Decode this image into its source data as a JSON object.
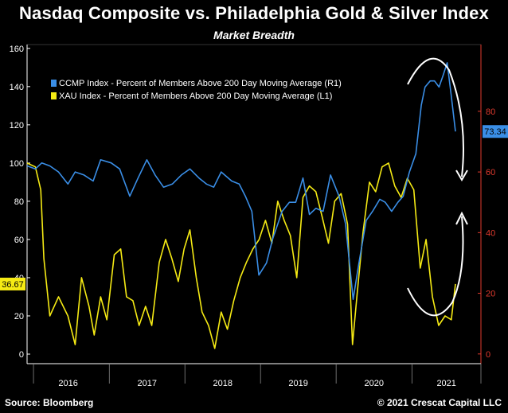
{
  "header": {
    "title": "Nasdaq Composite vs. Philadelphia Gold & Silver Index",
    "subtitle": "Market Breadth"
  },
  "footer": {
    "source": "Source: Bloomberg",
    "copyright": "© 2021 Crescat Capital LLC"
  },
  "colors": {
    "background": "#000000",
    "ccmp": "#3a8ee6",
    "xau": "#f5ea14",
    "left_axis": "#ffffff",
    "right_axis": "#e03a2e",
    "annotation": "#ffffff"
  },
  "chart_data": {
    "type": "line",
    "x_axis": {
      "type": "date",
      "range": [
        "2015-12-01",
        "2021-11-30"
      ]
    },
    "x_tick_labels": [
      "2016",
      "2017",
      "2018",
      "2019",
      "2020",
      "2021"
    ],
    "left_axis": {
      "ylim": [
        -5,
        162
      ],
      "ticks": [
        0,
        20,
        40,
        60,
        80,
        100,
        120,
        140,
        160
      ]
    },
    "right_axis": {
      "ylim": [
        -3.2,
        102
      ],
      "ticks": [
        0,
        20,
        40,
        60,
        80
      ]
    },
    "grid": false,
    "legend": {
      "placement": "top-left",
      "entries": [
        "CCMP Index - Percent of Members Above 200 Day Moving Average (R1)",
        "XAU Index - Percent of Members Above 200 Day Moving Average (L1)"
      ]
    },
    "last_value_labels": {
      "xau": "36.67",
      "ccmp": "73.34"
    },
    "annotations": [
      "curved arrow down over CCMP peak",
      "curved arrow up under XAU trough"
    ],
    "series": [
      {
        "name": "CCMP Index - Percent of Members Above 200 Day Moving Average (R1)",
        "axis": "right",
        "color": "#3a8ee6",
        "x": [
          "2015-12-01",
          "2016-01-10",
          "2016-02-10",
          "2016-03-20",
          "2016-05-01",
          "2016-06-15",
          "2016-07-20",
          "2016-09-01",
          "2016-10-15",
          "2016-11-20",
          "2017-01-10",
          "2017-02-20",
          "2017-04-10",
          "2017-05-20",
          "2017-07-01",
          "2017-08-10",
          "2017-09-20",
          "2017-11-01",
          "2017-12-15",
          "2018-01-25",
          "2018-03-10",
          "2018-04-15",
          "2018-05-20",
          "2018-06-25",
          "2018-08-15",
          "2018-09-20",
          "2018-10-20",
          "2018-11-20",
          "2018-12-24",
          "2019-01-30",
          "2019-03-01",
          "2019-04-15",
          "2019-05-20",
          "2019-06-20",
          "2019-07-25",
          "2019-08-25",
          "2019-09-25",
          "2019-10-30",
          "2019-12-05",
          "2020-01-15",
          "2020-02-15",
          "2020-03-23",
          "2020-04-20",
          "2020-05-25",
          "2020-06-25",
          "2020-07-30",
          "2020-08-25",
          "2020-09-25",
          "2020-10-25",
          "2020-11-20",
          "2020-12-20",
          "2021-01-20",
          "2021-02-15",
          "2021-03-05",
          "2021-03-30",
          "2021-04-20",
          "2021-05-12",
          "2021-06-01",
          "2021-06-20",
          "2021-07-10",
          "2021-07-30"
        ],
        "values": [
          62,
          61,
          63,
          62,
          60,
          56,
          60,
          59,
          57,
          64,
          63,
          61,
          52,
          58,
          64,
          59,
          55,
          56,
          59,
          61,
          58,
          56,
          55,
          60,
          57,
          56,
          52,
          47,
          26,
          30,
          38,
          47,
          50,
          50,
          58,
          46,
          48,
          47,
          59,
          52,
          43,
          18,
          30,
          44,
          47,
          51,
          50,
          47,
          50,
          52,
          60,
          66,
          82,
          88,
          90,
          90,
          88,
          92,
          96,
          85,
          73.34
        ]
      },
      {
        "name": "XAU Index - Percent of Members Above 200 Day Moving Average (L1)",
        "axis": "left",
        "color": "#f5ea14",
        "x": [
          "2015-12-01",
          "2016-01-10",
          "2016-02-05",
          "2016-02-20",
          "2016-03-20",
          "2016-05-01",
          "2016-06-15",
          "2016-07-20",
          "2016-08-20",
          "2016-09-25",
          "2016-10-20",
          "2016-11-20",
          "2016-12-20",
          "2017-01-25",
          "2017-02-25",
          "2017-03-25",
          "2017-04-25",
          "2017-05-25",
          "2017-06-25",
          "2017-07-25",
          "2017-08-30",
          "2017-09-30",
          "2017-10-30",
          "2017-11-30",
          "2017-12-28",
          "2018-01-25",
          "2018-02-25",
          "2018-03-25",
          "2018-04-25",
          "2018-05-25",
          "2018-06-25",
          "2018-07-25",
          "2018-08-25",
          "2018-09-25",
          "2018-10-25",
          "2018-11-25",
          "2018-12-25",
          "2019-01-25",
          "2019-02-25",
          "2019-03-25",
          "2019-04-25",
          "2019-05-25",
          "2019-06-25",
          "2019-07-25",
          "2019-08-25",
          "2019-09-25",
          "2019-10-25",
          "2019-11-25",
          "2019-12-25",
          "2020-01-25",
          "2020-02-25",
          "2020-03-20",
          "2020-04-10",
          "2020-05-10",
          "2020-06-10",
          "2020-07-10",
          "2020-08-10",
          "2020-09-10",
          "2020-10-10",
          "2020-11-10",
          "2020-12-10",
          "2021-01-10",
          "2021-02-10",
          "2021-03-10",
          "2021-04-10",
          "2021-05-10",
          "2021-06-10",
          "2021-07-10",
          "2021-07-30"
        ],
        "values": [
          100,
          98,
          86,
          50,
          20,
          30,
          20,
          5,
          40,
          25,
          10,
          30,
          18,
          52,
          55,
          30,
          28,
          15,
          25,
          15,
          48,
          60,
          50,
          38,
          55,
          65,
          40,
          22,
          15,
          3,
          22,
          13,
          28,
          40,
          48,
          55,
          60,
          70,
          58,
          80,
          70,
          62,
          40,
          82,
          88,
          85,
          72,
          58,
          80,
          84,
          68,
          5,
          30,
          64,
          90,
          85,
          98,
          100,
          88,
          82,
          92,
          86,
          45,
          60,
          30,
          15,
          20,
          18,
          36.67
        ]
      }
    ]
  }
}
